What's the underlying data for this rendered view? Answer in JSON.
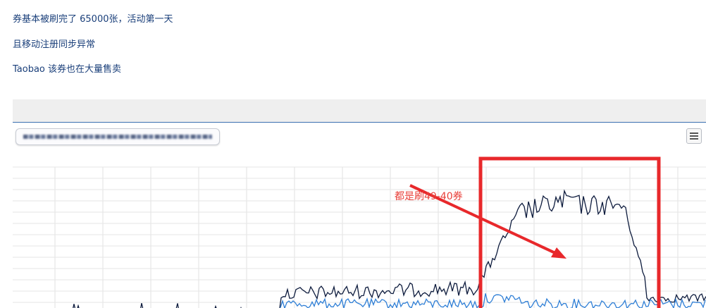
{
  "notes": [
    "券基本被刷完了 65000张，活动第一天",
    "且移动注册同步异常",
    "Taobao 该券也在大量售卖"
  ],
  "annotation": {
    "text": "都是刷49-40券",
    "color": "#e8403a"
  },
  "menu": {
    "icon": "hamburger-menu-icon"
  },
  "chart_data": {
    "type": "line",
    "title": "",
    "xlabel": "",
    "ylabel": "",
    "grid": true,
    "legend": "top-left",
    "series": [
      {
        "color": "#0d1b3d"
      },
      {
        "color": "#2f7fd6"
      }
    ]
  },
  "highlight": {
    "color": "#e8282b"
  }
}
